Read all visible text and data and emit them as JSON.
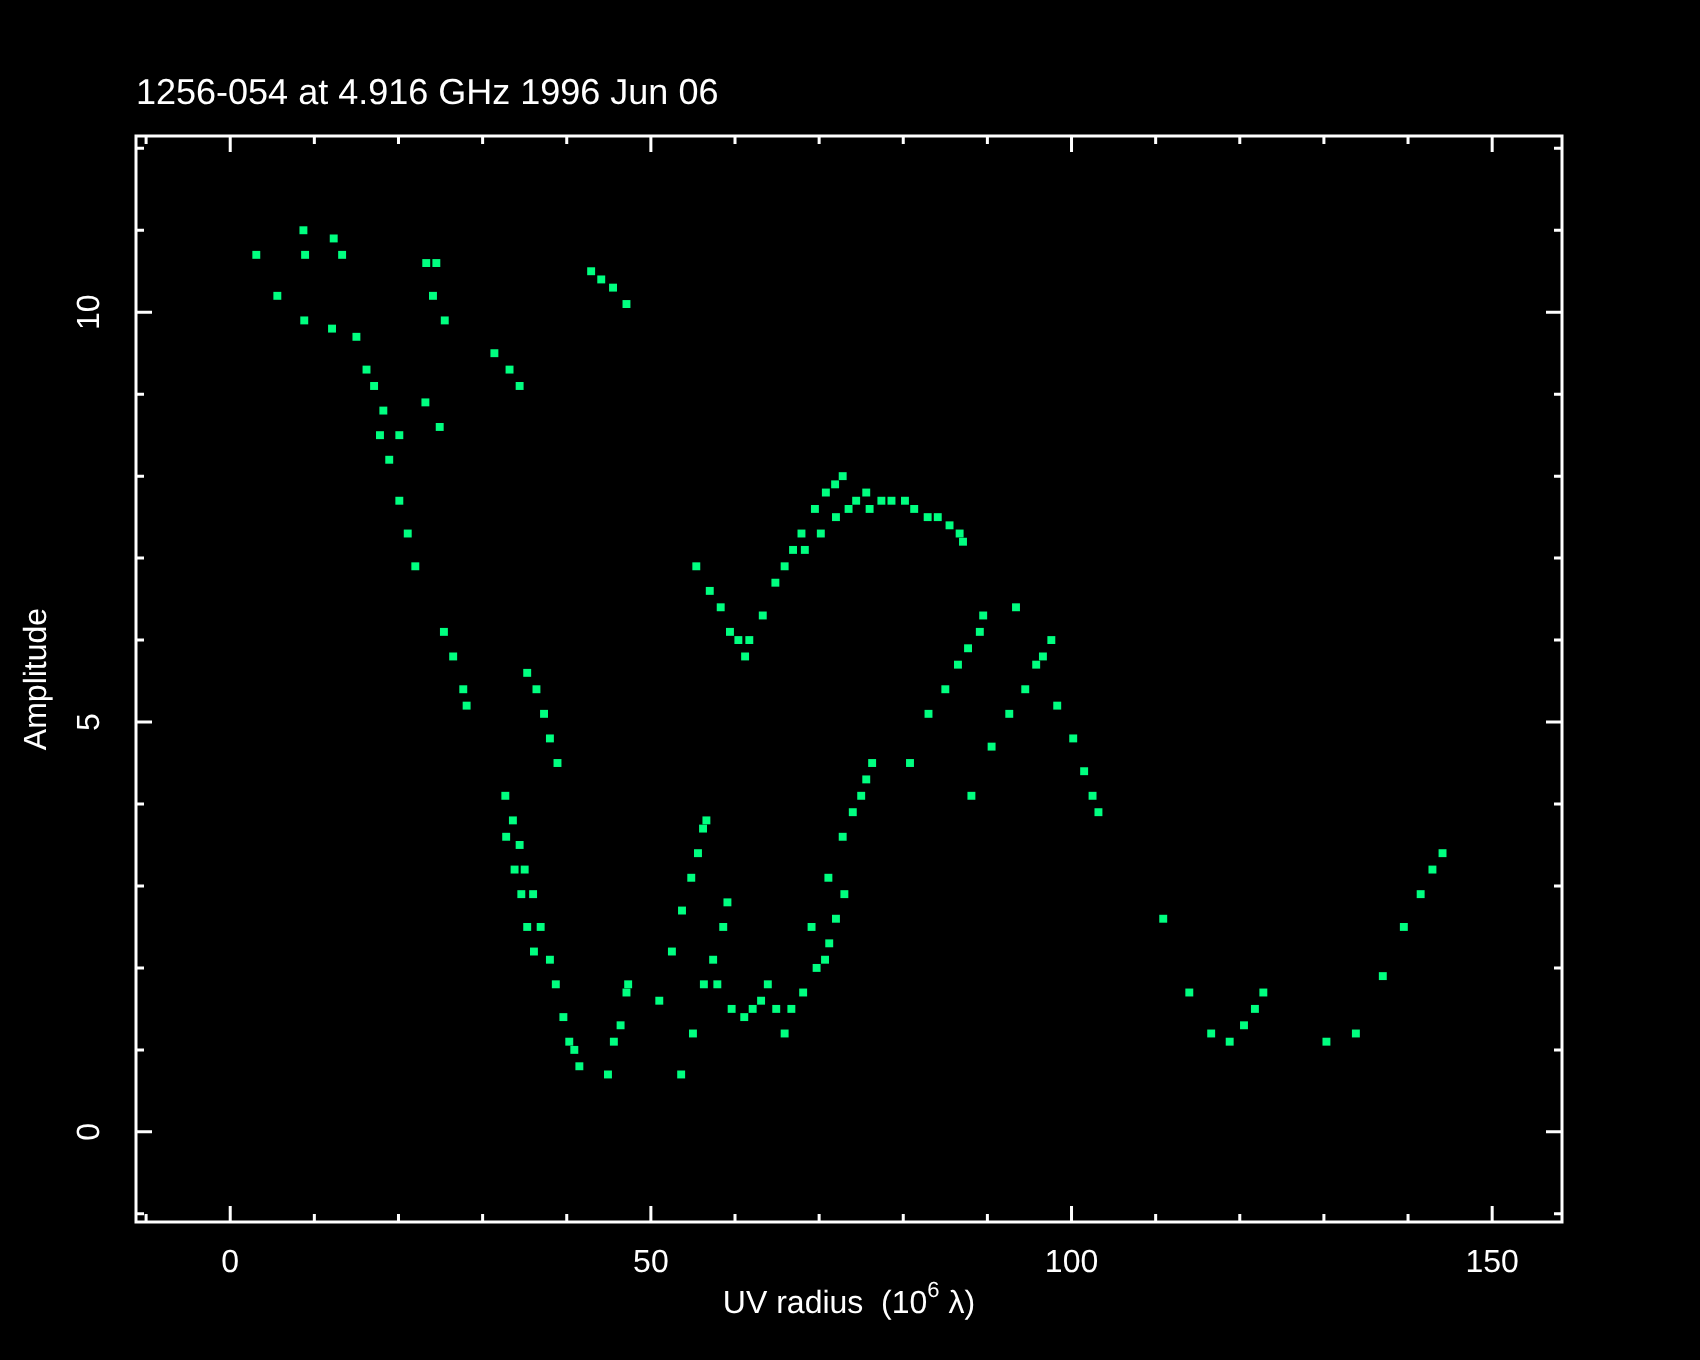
{
  "chart_data": {
    "type": "scatter",
    "title": "1256-054 at 4.916 GHz 1996 Jun 06",
    "xlabel": "UV radius  (10$^{6}$ λ)",
    "ylabel": "Amplitude",
    "marker": "square",
    "color": "#00ff80",
    "xlim": [
      -11.2,
      158.3
    ],
    "ylim": [
      -1.1,
      12.15
    ],
    "xticks": [
      {
        "value": -10,
        "label": null
      },
      0,
      {
        "value": 10,
        "label": null
      },
      {
        "value": 20,
        "label": null
      },
      {
        "value": 30,
        "label": null
      },
      {
        "value": 40,
        "label": null
      },
      50,
      {
        "value": 60,
        "label": null
      },
      {
        "value": 70,
        "label": null
      },
      {
        "value": 80,
        "label": null
      },
      {
        "value": 90,
        "label": null
      },
      100,
      {
        "value": 110,
        "label": null
      },
      {
        "value": 120,
        "label": null
      },
      {
        "value": 130,
        "label": null
      },
      {
        "value": 140,
        "label": null
      },
      150
    ],
    "yticks": [
      {
        "value": -1,
        "label": null
      },
      0,
      {
        "value": 1,
        "label": null
      },
      {
        "value": 2,
        "label": null
      },
      {
        "value": 3,
        "label": null
      },
      {
        "value": 4,
        "label": null
      },
      5,
      {
        "value": 6,
        "label": null
      },
      {
        "value": 7,
        "label": null
      },
      {
        "value": 8,
        "label": null
      },
      {
        "value": 9,
        "label": null
      },
      10,
      {
        "value": 11,
        "label": null
      },
      {
        "value": 12,
        "label": null
      }
    ],
    "x": [
      3.1,
      5.6,
      8.7,
      8.9,
      8.8,
      12.3,
      13.3,
      12.1,
      15.0,
      16.2,
      17.1,
      18.2,
      17.8,
      18.9,
      20.1,
      20.1,
      21.1,
      22.0,
      23.3,
      24.5,
      24.1,
      25.5,
      23.2,
      24.9,
      31.4,
      33.2,
      34.4,
      42.9,
      44.1,
      45.5,
      47.1,
      25.4,
      26.5,
      27.7,
      28.1,
      35.3,
      36.4,
      37.3,
      38.0,
      38.9,
      32.7,
      33.6,
      32.8,
      34.4,
      33.8,
      35.0,
      36.0,
      34.6,
      35.3,
      36.1,
      36.9,
      38.0,
      38.7,
      39.6,
      40.3,
      40.9,
      41.5,
      44.9,
      45.6,
      46.4,
      47.1,
      47.3,
      51.0,
      52.5,
      53.7,
      54.8,
      55.6,
      56.2,
      56.6,
      55.0,
      53.6,
      55.4,
      57.0,
      58.3,
      59.4,
      60.4,
      61.2,
      61.7,
      63.3,
      64.8,
      65.9,
      66.9,
      67.9,
      68.3,
      69.5,
      70.2,
      70.8,
      71.9,
      72.0,
      72.8,
      73.5,
      74.4,
      75.6,
      76.0,
      77.4,
      78.6,
      80.2,
      81.3,
      82.9,
      84.1,
      85.5,
      86.7,
      87.1,
      57.9,
      56.3,
      57.4,
      58.6,
      59.1,
      59.6,
      61.1,
      62.1,
      63.1,
      63.9,
      64.9,
      65.9,
      66.7,
      68.1,
      69.1,
      69.7,
      70.7,
      71.2,
      72.0,
      73.0,
      71.1,
      72.8,
      74.0,
      75.0,
      75.6,
      76.3,
      80.8,
      83.0,
      85.0,
      86.5,
      87.7,
      89.1,
      89.5,
      93.4,
      88.1,
      90.5,
      92.6,
      94.5,
      95.8,
      96.6,
      97.6,
      98.3,
      100.2,
      101.5,
      102.5,
      103.2,
      110.9,
      114.0,
      116.6,
      118.8,
      120.5,
      121.8,
      122.8,
      130.3,
      133.8,
      137.0,
      139.5,
      141.5,
      142.9,
      144.1
    ],
    "values": [
      10.7,
      10.2,
      11.0,
      10.7,
      9.9,
      10.9,
      10.7,
      9.8,
      9.7,
      9.3,
      9.1,
      8.8,
      8.5,
      8.2,
      8.5,
      7.7,
      7.3,
      6.9,
      10.6,
      10.6,
      10.2,
      9.9,
      8.9,
      8.6,
      9.5,
      9.3,
      9.1,
      10.5,
      10.4,
      10.3,
      10.1,
      6.1,
      5.8,
      5.4,
      5.2,
      5.6,
      5.4,
      5.1,
      4.8,
      4.5,
      4.1,
      3.8,
      3.6,
      3.5,
      3.2,
      3.2,
      2.9,
      2.9,
      2.5,
      2.2,
      2.5,
      2.1,
      1.8,
      1.4,
      1.1,
      1.0,
      0.8,
      0.7,
      1.1,
      1.3,
      1.7,
      1.8,
      1.6,
      2.2,
      2.7,
      3.1,
      3.4,
      3.7,
      3.8,
      1.2,
      0.7,
      6.9,
      6.6,
      6.4,
      6.1,
      6.0,
      5.8,
      6.0,
      6.3,
      6.7,
      6.9,
      7.1,
      7.3,
      7.1,
      7.6,
      7.3,
      7.8,
      7.9,
      7.5,
      8.0,
      7.6,
      7.7,
      7.8,
      7.6,
      7.7,
      7.7,
      7.7,
      7.6,
      7.5,
      7.5,
      7.4,
      7.3,
      7.2,
      1.8,
      1.8,
      2.1,
      2.5,
      2.8,
      1.5,
      1.4,
      1.5,
      1.6,
      1.8,
      1.5,
      1.2,
      1.5,
      1.7,
      2.5,
      2.0,
      2.1,
      2.3,
      2.6,
      2.9,
      3.1,
      3.6,
      3.9,
      4.1,
      4.3,
      4.5,
      4.5,
      5.1,
      5.4,
      5.7,
      5.9,
      6.1,
      6.3,
      6.4,
      4.1,
      4.7,
      5.1,
      5.4,
      5.7,
      5.8,
      6.0,
      5.2,
      4.8,
      4.4,
      4.1,
      3.9,
      2.6,
      1.7,
      1.2,
      1.1,
      1.3,
      1.5,
      1.7,
      1.1,
      1.2,
      1.9,
      2.5,
      2.9,
      3.2,
      3.4
    ]
  }
}
